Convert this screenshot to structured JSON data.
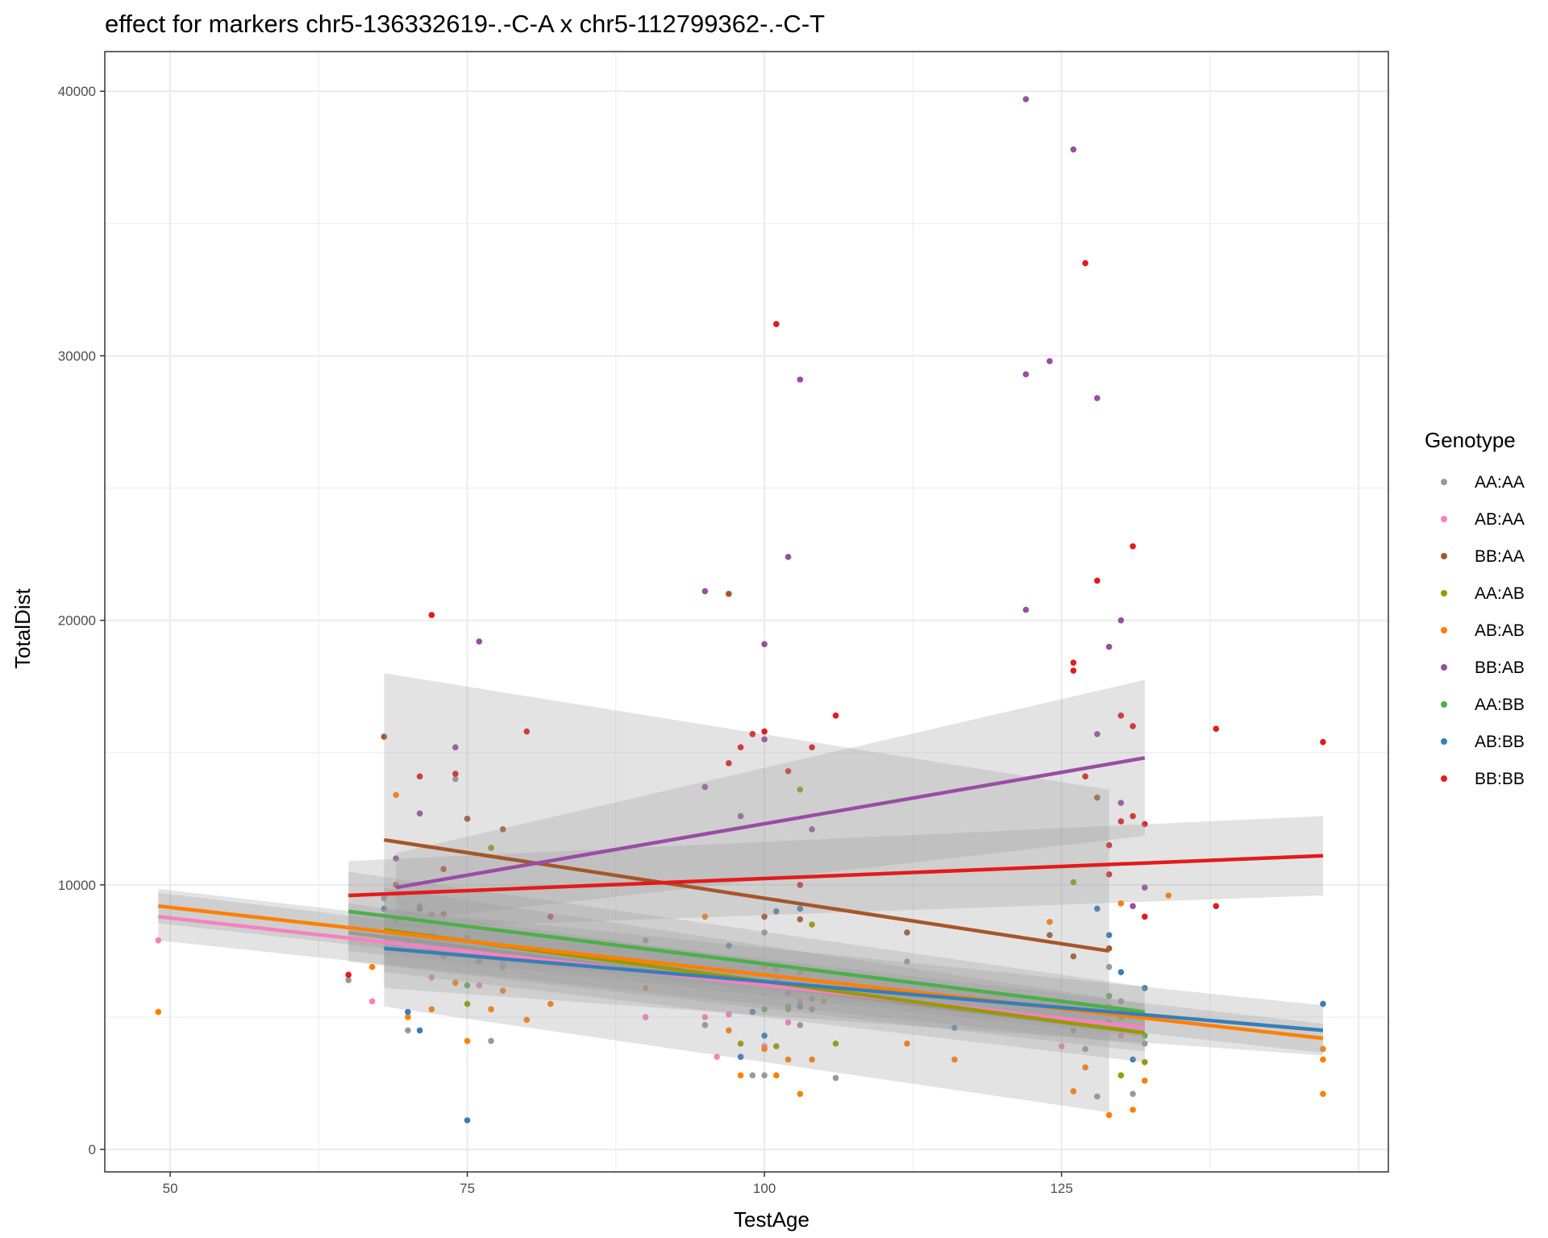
{
  "chart_data": {
    "type": "scatter",
    "title": "effect for markers chr5-136332619-.-C-A x chr5-112799362-.-C-T",
    "xlabel": "TestAge",
    "ylabel": "TotalDist",
    "xlim": [
      44.5,
      152.5
    ],
    "ylim": [
      -850,
      41500
    ],
    "x_ticks": [
      50,
      75,
      100,
      125
    ],
    "y_ticks": [
      0,
      10000,
      20000,
      30000,
      40000
    ],
    "grid": true,
    "legend": {
      "title": "Genotype",
      "placement": "right"
    },
    "series": [
      {
        "name": "AA:AA",
        "color": "#999999",
        "trend": {
          "x": [
            65,
            132
          ],
          "y": [
            8200,
            4400
          ],
          "ci_halfwidth": [
            1100,
            700
          ]
        },
        "points": [
          [
            65,
            6400
          ],
          [
            68,
            9500
          ],
          [
            69,
            8700
          ],
          [
            70,
            4500
          ],
          [
            70,
            7800
          ],
          [
            71,
            9200
          ],
          [
            72,
            8900
          ],
          [
            73,
            7300
          ],
          [
            74,
            14000
          ],
          [
            75,
            8000
          ],
          [
            76,
            7100
          ],
          [
            77,
            4100
          ],
          [
            78,
            6900
          ],
          [
            90,
            7900
          ],
          [
            95,
            4700
          ],
          [
            99,
            2800
          ],
          [
            100,
            2800
          ],
          [
            100,
            8200
          ],
          [
            101,
            6800
          ],
          [
            102,
            5900
          ],
          [
            103,
            4700
          ],
          [
            104,
            5300
          ],
          [
            106,
            2700
          ],
          [
            112,
            7100
          ],
          [
            126,
            4500
          ],
          [
            127,
            3800
          ],
          [
            128,
            2000
          ],
          [
            129,
            6900
          ],
          [
            130,
            5600
          ],
          [
            131,
            2100
          ],
          [
            132,
            4000
          ]
        ]
      },
      {
        "name": "AB:AA",
        "color": "#f781bf",
        "trend": {
          "x": [
            49,
            132
          ],
          "y": [
            8800,
            4600
          ],
          "ci_halfwidth": [
            900,
            650
          ]
        },
        "points": [
          [
            49,
            7900
          ],
          [
            67,
            5600
          ],
          [
            72,
            6500
          ],
          [
            76,
            6200
          ],
          [
            78,
            7000
          ],
          [
            90,
            5000
          ],
          [
            95,
            5000
          ],
          [
            96,
            3500
          ],
          [
            97,
            5100
          ],
          [
            100,
            3900
          ],
          [
            102,
            4800
          ],
          [
            103,
            5600
          ],
          [
            125,
            3900
          ],
          [
            129,
            5400
          ],
          [
            130,
            4300
          ]
        ]
      },
      {
        "name": "BB:AA",
        "color": "#a65628",
        "trend": {
          "x": [
            68,
            129
          ],
          "y": [
            11700,
            7500
          ],
          "ci_halfwidth": [
            6300,
            6100
          ]
        },
        "points": [
          [
            68,
            15600
          ],
          [
            69,
            10000
          ],
          [
            71,
            9100
          ],
          [
            73,
            8900
          ],
          [
            75,
            12500
          ],
          [
            78,
            12100
          ],
          [
            97,
            21000
          ],
          [
            100,
            8800
          ],
          [
            103,
            8700
          ],
          [
            112,
            8200
          ],
          [
            124,
            8100
          ],
          [
            126,
            7300
          ],
          [
            128,
            13300
          ],
          [
            129,
            7600
          ]
        ]
      },
      {
        "name": "AA:AB",
        "color": "#999900",
        "trend": {
          "x": [
            68,
            132
          ],
          "y": [
            8300,
            4400
          ],
          "ci_halfwidth": [
            1600,
            1100
          ]
        },
        "points": [
          [
            72,
            8100
          ],
          [
            75,
            5500
          ],
          [
            77,
            11400
          ],
          [
            98,
            4000
          ],
          [
            101,
            3900
          ],
          [
            102,
            5300
          ],
          [
            103,
            13600
          ],
          [
            104,
            8500
          ],
          [
            106,
            4000
          ],
          [
            126,
            10100
          ],
          [
            129,
            4800
          ],
          [
            130,
            2800
          ],
          [
            132,
            3300
          ]
        ]
      },
      {
        "name": "AB:AB",
        "color": "#ff7f00",
        "trend": {
          "x": [
            49,
            147
          ],
          "y": [
            9200,
            4200
          ],
          "ci_halfwidth": [
            650,
            550
          ]
        },
        "points": [
          [
            49,
            5200
          ],
          [
            67,
            6900
          ],
          [
            69,
            13400
          ],
          [
            70,
            5000
          ],
          [
            72,
            5300
          ],
          [
            74,
            6300
          ],
          [
            75,
            4100
          ],
          [
            76,
            7300
          ],
          [
            77,
            5300
          ],
          [
            78,
            6000
          ],
          [
            80,
            4900
          ],
          [
            82,
            5500
          ],
          [
            90,
            6100
          ],
          [
            95,
            8800
          ],
          [
            97,
            4500
          ],
          [
            98,
            2800
          ],
          [
            100,
            3800
          ],
          [
            100,
            6900
          ],
          [
            101,
            2800
          ],
          [
            102,
            3400
          ],
          [
            103,
            2100
          ],
          [
            103,
            6700
          ],
          [
            104,
            3400
          ],
          [
            105,
            5600
          ],
          [
            112,
            4000
          ],
          [
            116,
            3400
          ],
          [
            124,
            8600
          ],
          [
            126,
            2200
          ],
          [
            127,
            3100
          ],
          [
            129,
            1300
          ],
          [
            130,
            5000
          ],
          [
            130,
            9300
          ],
          [
            131,
            1500
          ],
          [
            132,
            2600
          ],
          [
            134,
            9600
          ],
          [
            147,
            2100
          ],
          [
            147,
            3400
          ],
          [
            147,
            3800
          ]
        ]
      },
      {
        "name": "BB:AB",
        "color": "#984ea3",
        "trend": {
          "x": [
            69,
            132
          ],
          "y": [
            9900,
            14800
          ],
          "ci_halfwidth": [
            1300,
            2950
          ]
        },
        "points": [
          [
            69,
            11000
          ],
          [
            71,
            12700
          ],
          [
            74,
            15200
          ],
          [
            76,
            19200
          ],
          [
            95,
            21100
          ],
          [
            95,
            13700
          ],
          [
            98,
            12600
          ],
          [
            100,
            19100
          ],
          [
            100,
            15500
          ],
          [
            102,
            22400
          ],
          [
            103,
            29100
          ],
          [
            104,
            12100
          ],
          [
            122,
            39700
          ],
          [
            122,
            29300
          ],
          [
            122,
            20400
          ],
          [
            124,
            29800
          ],
          [
            126,
            37800
          ],
          [
            128,
            28400
          ],
          [
            128,
            15700
          ],
          [
            129,
            19000
          ],
          [
            130,
            20000
          ],
          [
            130,
            13100
          ],
          [
            131,
            9200
          ],
          [
            132,
            9900
          ]
        ]
      },
      {
        "name": "AA:BB",
        "color": "#4daf4a",
        "trend": {
          "x": [
            65,
            132
          ],
          "y": [
            9000,
            5200
          ],
          "ci_halfwidth": [
            1500,
            950
          ]
        },
        "points": [
          [
            72,
            7600
          ],
          [
            75,
            6200
          ],
          [
            100,
            5300
          ],
          [
            101,
            6400
          ],
          [
            102,
            5400
          ],
          [
            104,
            5700
          ],
          [
            129,
            5800
          ],
          [
            130,
            5200
          ],
          [
            132,
            4300
          ]
        ]
      },
      {
        "name": "AB:BB",
        "color": "#377eb8",
        "trend": {
          "x": [
            68,
            147
          ],
          "y": [
            7600,
            4500
          ],
          "ci_halfwidth": [
            1500,
            950
          ]
        },
        "points": [
          [
            68,
            9100
          ],
          [
            70,
            5200
          ],
          [
            71,
            4500
          ],
          [
            75,
            1100
          ],
          [
            97,
            7700
          ],
          [
            98,
            3500
          ],
          [
            99,
            5200
          ],
          [
            100,
            4300
          ],
          [
            101,
            9000
          ],
          [
            102,
            6200
          ],
          [
            103,
            5400
          ],
          [
            103,
            9100
          ],
          [
            116,
            4600
          ],
          [
            128,
            9100
          ],
          [
            129,
            8100
          ],
          [
            130,
            6700
          ],
          [
            131,
            3400
          ],
          [
            132,
            6100
          ],
          [
            147,
            5500
          ]
        ]
      },
      {
        "name": "BB:BB",
        "color": "#e41a1c",
        "trend": {
          "x": [
            65,
            147
          ],
          "y": [
            9600,
            11100
          ],
          "ci_halfwidth": [
            1300,
            1500
          ]
        },
        "points": [
          [
            65,
            6600
          ],
          [
            72,
            20200
          ],
          [
            71,
            14100
          ],
          [
            73,
            10600
          ],
          [
            74,
            14200
          ],
          [
            80,
            15800
          ],
          [
            82,
            8800
          ],
          [
            97,
            14600
          ],
          [
            98,
            15200
          ],
          [
            99,
            15700
          ],
          [
            100,
            15800
          ],
          [
            101,
            31200
          ],
          [
            102,
            14300
          ],
          [
            103,
            10000
          ],
          [
            104,
            15200
          ],
          [
            106,
            16400
          ],
          [
            126,
            18400
          ],
          [
            126,
            18100
          ],
          [
            127,
            14100
          ],
          [
            127,
            33500
          ],
          [
            128,
            21500
          ],
          [
            129,
            11500
          ],
          [
            129,
            10400
          ],
          [
            130,
            16400
          ],
          [
            130,
            12400
          ],
          [
            131,
            22800
          ],
          [
            131,
            16000
          ],
          [
            131,
            12600
          ],
          [
            132,
            12300
          ],
          [
            132,
            8800
          ],
          [
            138,
            15900
          ],
          [
            138,
            9200
          ],
          [
            147,
            15400
          ]
        ]
      }
    ]
  }
}
